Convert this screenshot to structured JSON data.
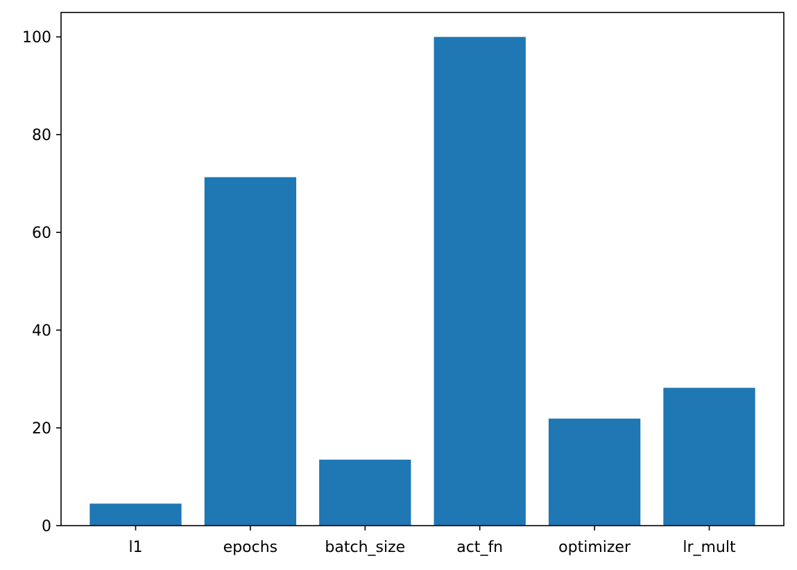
{
  "chart_data": {
    "type": "bar",
    "categories": [
      "l1",
      "epochs",
      "batch_size",
      "act_fn",
      "optimizer",
      "lr_mult"
    ],
    "values": [
      4.5,
      71.3,
      13.5,
      100.0,
      21.9,
      28.2
    ],
    "title": "",
    "xlabel": "",
    "ylabel": "",
    "ylim": [
      0,
      105
    ],
    "yticks": [
      0,
      20,
      40,
      60,
      80,
      100
    ],
    "grid": false,
    "legend": "none",
    "bar_color": "#1f77b4"
  }
}
